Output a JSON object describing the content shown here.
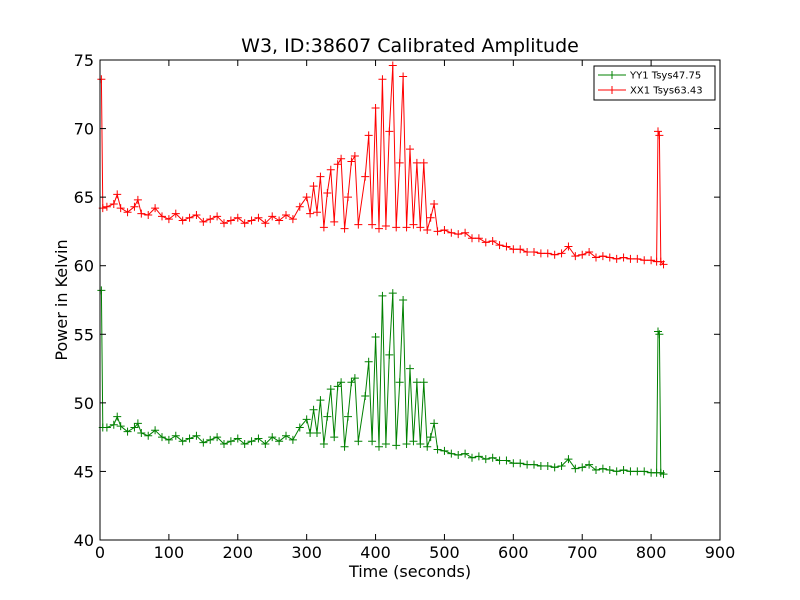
{
  "chart_data": {
    "type": "line",
    "title": "W3, ID:38607 Calibrated Amplitude",
    "xlabel": "Time (seconds)",
    "ylabel": "Power in Kelvin",
    "xlim": [
      0,
      900
    ],
    "ylim": [
      40,
      75
    ],
    "xticks": [
      "0",
      "100",
      "200",
      "300",
      "400",
      "500",
      "600",
      "700",
      "800",
      "900"
    ],
    "yticks": [
      "40",
      "45",
      "50",
      "55",
      "60",
      "65",
      "70",
      "75"
    ],
    "grid": false,
    "legend": {
      "placement": "top-right",
      "entries": [
        "YY1 Tsys47.75",
        "XX1 Tsys63.43"
      ]
    },
    "marker": "plus",
    "series": [
      {
        "name": "YY1 Tsys47.75",
        "color": "#008000",
        "points": [
          [
            2,
            58.2
          ],
          [
            4,
            48.2
          ],
          [
            10,
            48.2
          ],
          [
            20,
            48.4
          ],
          [
            25,
            49.0
          ],
          [
            30,
            48.3
          ],
          [
            40,
            47.9
          ],
          [
            50,
            48.2
          ],
          [
            55,
            48.5
          ],
          [
            60,
            47.8
          ],
          [
            70,
            47.6
          ],
          [
            80,
            48.0
          ],
          [
            90,
            47.5
          ],
          [
            100,
            47.3
          ],
          [
            110,
            47.6
          ],
          [
            120,
            47.2
          ],
          [
            130,
            47.4
          ],
          [
            140,
            47.6
          ],
          [
            150,
            47.1
          ],
          [
            160,
            47.3
          ],
          [
            170,
            47.5
          ],
          [
            180,
            47.0
          ],
          [
            190,
            47.2
          ],
          [
            200,
            47.4
          ],
          [
            210,
            47.0
          ],
          [
            220,
            47.2
          ],
          [
            230,
            47.4
          ],
          [
            240,
            47.0
          ],
          [
            250,
            47.5
          ],
          [
            260,
            47.2
          ],
          [
            270,
            47.6
          ],
          [
            280,
            47.3
          ],
          [
            290,
            48.2
          ],
          [
            300,
            48.8
          ],
          [
            305,
            47.8
          ],
          [
            310,
            49.5
          ],
          [
            315,
            47.8
          ],
          [
            320,
            50.2
          ],
          [
            325,
            47.0
          ],
          [
            330,
            49.0
          ],
          [
            335,
            51.0
          ],
          [
            340,
            47.5
          ],
          [
            345,
            51.2
          ],
          [
            350,
            51.5
          ],
          [
            355,
            46.8
          ],
          [
            360,
            49.0
          ],
          [
            365,
            51.5
          ],
          [
            370,
            51.8
          ],
          [
            375,
            47.2
          ],
          [
            385,
            50.5
          ],
          [
            390,
            53.0
          ],
          [
            395,
            47.2
          ],
          [
            400,
            54.8
          ],
          [
            405,
            46.8
          ],
          [
            410,
            57.8
          ],
          [
            415,
            47.0
          ],
          [
            420,
            53.5
          ],
          [
            425,
            58.0
          ],
          [
            430,
            46.9
          ],
          [
            435,
            51.5
          ],
          [
            440,
            57.5
          ],
          [
            445,
            47.0
          ],
          [
            450,
            52.5
          ],
          [
            455,
            47.2
          ],
          [
            460,
            51.5
          ],
          [
            465,
            47.0
          ],
          [
            470,
            51.5
          ],
          [
            475,
            46.8
          ],
          [
            480,
            47.5
          ],
          [
            485,
            48.5
          ],
          [
            490,
            46.6
          ],
          [
            500,
            46.5
          ],
          [
            510,
            46.3
          ],
          [
            520,
            46.2
          ],
          [
            530,
            46.3
          ],
          [
            540,
            46.0
          ],
          [
            550,
            46.1
          ],
          [
            560,
            45.9
          ],
          [
            570,
            46.0
          ],
          [
            580,
            45.8
          ],
          [
            590,
            45.8
          ],
          [
            600,
            45.6
          ],
          [
            610,
            45.6
          ],
          [
            620,
            45.5
          ],
          [
            630,
            45.5
          ],
          [
            640,
            45.4
          ],
          [
            650,
            45.4
          ],
          [
            660,
            45.3
          ],
          [
            670,
            45.4
          ],
          [
            680,
            45.9
          ],
          [
            690,
            45.2
          ],
          [
            700,
            45.3
          ],
          [
            710,
            45.5
          ],
          [
            720,
            45.1
          ],
          [
            730,
            45.2
          ],
          [
            740,
            45.1
          ],
          [
            750,
            45.0
          ],
          [
            760,
            45.1
          ],
          [
            770,
            45.0
          ],
          [
            780,
            45.0
          ],
          [
            790,
            45.0
          ],
          [
            800,
            44.9
          ],
          [
            808,
            44.9
          ],
          [
            810,
            55.2
          ],
          [
            812,
            55.0
          ],
          [
            814,
            44.9
          ],
          [
            818,
            44.8
          ]
        ]
      },
      {
        "name": "XX1 Tsys63.43",
        "color": "#ff0000",
        "points": [
          [
            2,
            73.6
          ],
          [
            4,
            64.2
          ],
          [
            10,
            64.3
          ],
          [
            20,
            64.5
          ],
          [
            25,
            65.2
          ],
          [
            30,
            64.2
          ],
          [
            40,
            63.9
          ],
          [
            50,
            64.3
          ],
          [
            55,
            64.8
          ],
          [
            60,
            63.8
          ],
          [
            70,
            63.7
          ],
          [
            80,
            64.2
          ],
          [
            90,
            63.6
          ],
          [
            100,
            63.4
          ],
          [
            110,
            63.8
          ],
          [
            120,
            63.3
          ],
          [
            130,
            63.5
          ],
          [
            140,
            63.7
          ],
          [
            150,
            63.2
          ],
          [
            160,
            63.4
          ],
          [
            170,
            63.6
          ],
          [
            180,
            63.1
          ],
          [
            190,
            63.3
          ],
          [
            200,
            63.5
          ],
          [
            210,
            63.1
          ],
          [
            220,
            63.3
          ],
          [
            230,
            63.5
          ],
          [
            240,
            63.1
          ],
          [
            250,
            63.6
          ],
          [
            260,
            63.3
          ],
          [
            270,
            63.7
          ],
          [
            280,
            63.4
          ],
          [
            290,
            64.3
          ],
          [
            300,
            65.0
          ],
          [
            305,
            63.8
          ],
          [
            310,
            65.8
          ],
          [
            315,
            63.9
          ],
          [
            320,
            66.5
          ],
          [
            325,
            62.8
          ],
          [
            330,
            65.3
          ],
          [
            335,
            67.0
          ],
          [
            340,
            63.2
          ],
          [
            345,
            67.4
          ],
          [
            350,
            67.8
          ],
          [
            355,
            62.7
          ],
          [
            360,
            65.0
          ],
          [
            365,
            67.6
          ],
          [
            370,
            68.0
          ],
          [
            375,
            63.0
          ],
          [
            385,
            66.5
          ],
          [
            390,
            69.5
          ],
          [
            395,
            63.0
          ],
          [
            400,
            71.5
          ],
          [
            405,
            62.7
          ],
          [
            410,
            73.6
          ],
          [
            415,
            62.9
          ],
          [
            420,
            69.8
          ],
          [
            425,
            74.6
          ],
          [
            430,
            62.8
          ],
          [
            435,
            67.5
          ],
          [
            440,
            73.8
          ],
          [
            445,
            62.8
          ],
          [
            450,
            68.5
          ],
          [
            455,
            63.0
          ],
          [
            460,
            67.5
          ],
          [
            465,
            62.8
          ],
          [
            470,
            67.5
          ],
          [
            475,
            62.6
          ],
          [
            480,
            63.5
          ],
          [
            485,
            64.5
          ],
          [
            490,
            62.5
          ],
          [
            500,
            62.6
          ],
          [
            510,
            62.4
          ],
          [
            520,
            62.3
          ],
          [
            530,
            62.4
          ],
          [
            540,
            62.0
          ],
          [
            550,
            62.0
          ],
          [
            560,
            61.7
          ],
          [
            570,
            61.8
          ],
          [
            580,
            61.5
          ],
          [
            590,
            61.4
          ],
          [
            600,
            61.2
          ],
          [
            610,
            61.2
          ],
          [
            620,
            61.0
          ],
          [
            630,
            61.0
          ],
          [
            640,
            60.9
          ],
          [
            650,
            60.9
          ],
          [
            660,
            60.8
          ],
          [
            670,
            60.9
          ],
          [
            680,
            61.4
          ],
          [
            690,
            60.7
          ],
          [
            700,
            60.8
          ],
          [
            710,
            61.0
          ],
          [
            720,
            60.6
          ],
          [
            730,
            60.7
          ],
          [
            740,
            60.6
          ],
          [
            750,
            60.5
          ],
          [
            760,
            60.6
          ],
          [
            770,
            60.5
          ],
          [
            780,
            60.5
          ],
          [
            790,
            60.4
          ],
          [
            800,
            60.4
          ],
          [
            808,
            60.3
          ],
          [
            810,
            69.8
          ],
          [
            812,
            69.5
          ],
          [
            814,
            60.3
          ],
          [
            818,
            60.1
          ]
        ]
      }
    ]
  }
}
